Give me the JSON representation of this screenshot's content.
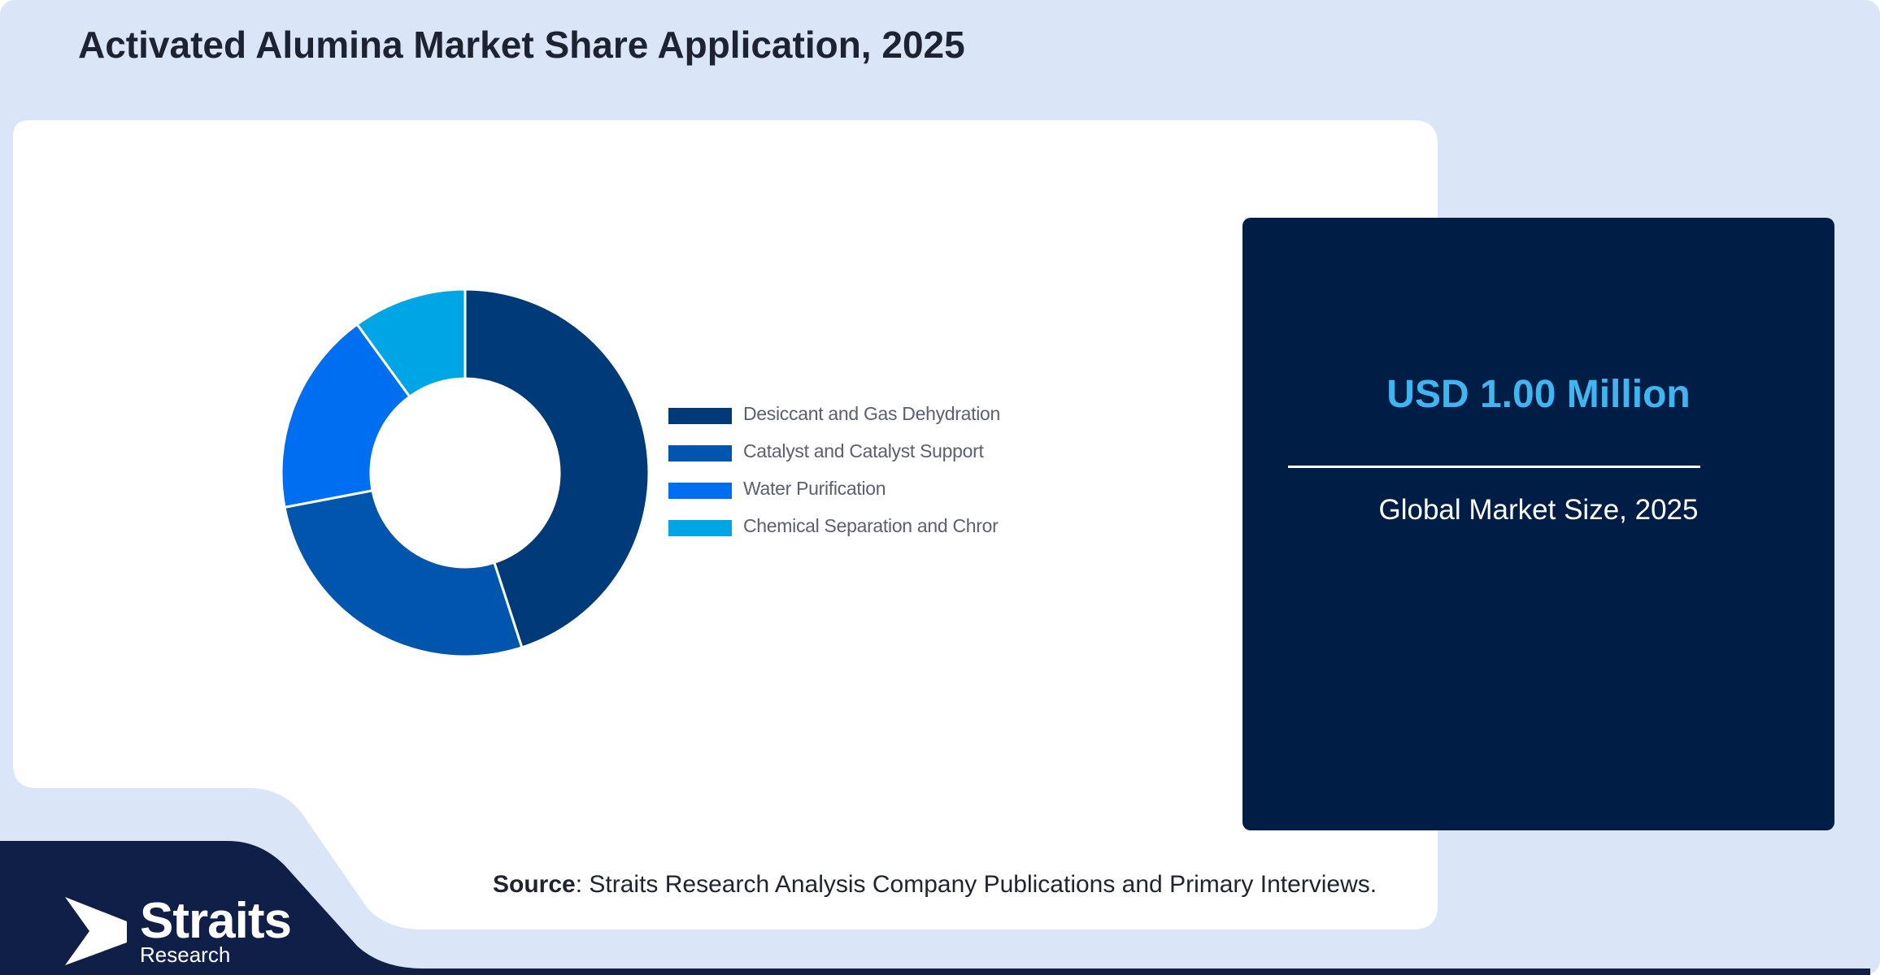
{
  "page": {
    "title": "Activated Alumina Market Share Application, 2025"
  },
  "chart_data": {
    "type": "pie",
    "variant": "donut",
    "categories": [
      "Desiccant and Gas Dehydration",
      "Catalyst and Catalyst Support",
      "Water Purification",
      "Chemical Separation and Chror"
    ],
    "values": [
      45,
      27,
      18,
      10
    ],
    "colors": [
      "#003a78",
      "#0055ad",
      "#006ef0",
      "#00a5e6"
    ],
    "legend_position": "right"
  },
  "stat_card": {
    "value": "USD 1.00 Million",
    "caption": "Global Market Size, 2025"
  },
  "source": {
    "label": "Source",
    "text": ": Straits Research Analysis Company Publications and Primary Interviews."
  },
  "logo": {
    "name": "Straits",
    "sub": "Research"
  },
  "colors": {
    "background": "#dae6f8",
    "panel": "#ffffff",
    "card": "#001e45",
    "footer": "#0f1f47",
    "accent": "#3fb6f0"
  }
}
